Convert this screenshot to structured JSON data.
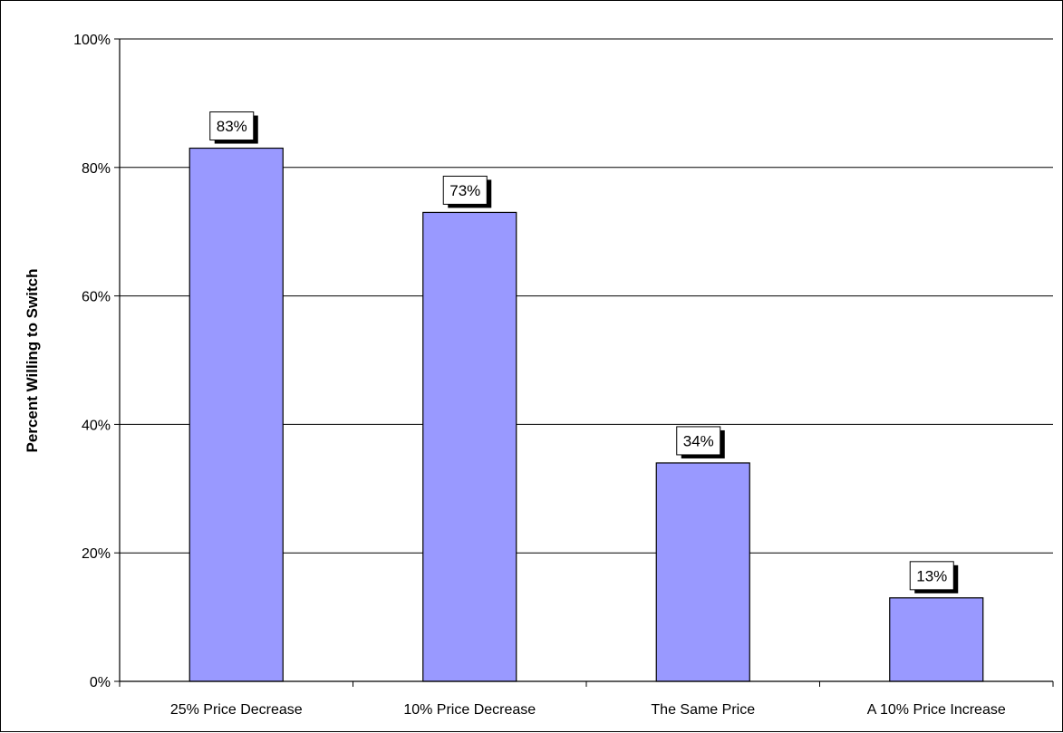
{
  "chart_data": {
    "type": "bar",
    "title": "",
    "xlabel": "",
    "ylabel": "Percent Willing to Switch",
    "categories": [
      "25% Price Decrease",
      "10% Price Decrease",
      "The Same Price",
      "A 10% Price Increase"
    ],
    "values": [
      83,
      73,
      34,
      13
    ],
    "data_labels": [
      "83%",
      "73%",
      "34%",
      "13%"
    ],
    "y_ticks": [
      0,
      20,
      40,
      60,
      80,
      100
    ],
    "y_tick_labels": [
      "0%",
      "20%",
      "40%",
      "60%",
      "80%",
      "100%"
    ],
    "ylim": [
      0,
      100
    ],
    "grid": true,
    "legend": "none",
    "colors": {
      "bar_fill": "#9999ff",
      "bar_stroke": "#000000",
      "gridline": "#000000",
      "label_box_fill": "#ffffff",
      "label_box_shadow": "#000000"
    }
  }
}
